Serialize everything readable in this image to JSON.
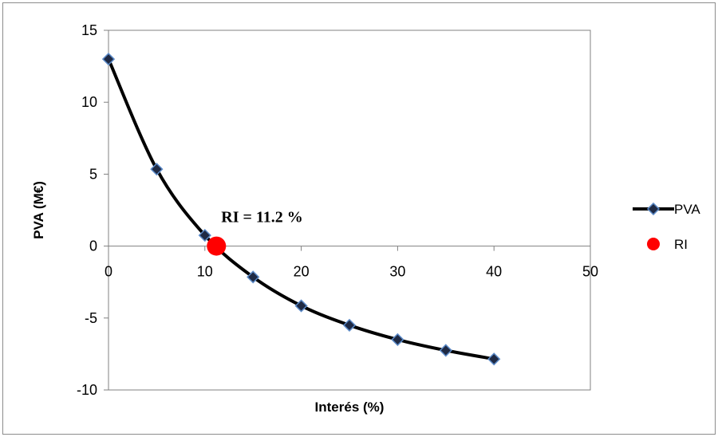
{
  "chart_data": {
    "type": "scatter",
    "title": "",
    "xlabel": "Interés (%)",
    "ylabel": "PVA (M€)",
    "xlim": [
      0,
      50
    ],
    "ylim": [
      -10,
      15
    ],
    "xticks": [
      "0",
      "10",
      "20",
      "30",
      "40",
      "50"
    ],
    "yticks": [
      "-10",
      "-5",
      "0",
      "5",
      "10",
      "15"
    ],
    "grid": false,
    "legend_position": "right",
    "series": [
      {
        "name": "PVA",
        "style": "smooth line with diamond markers",
        "color": "#000000",
        "marker_color": "#1f2a44",
        "marker_edge": "#5b8ac8",
        "x": [
          0,
          5,
          10,
          15,
          20,
          25,
          30,
          35,
          40
        ],
        "y": [
          13.0,
          5.35,
          0.75,
          -2.15,
          -4.15,
          -5.5,
          -6.5,
          -7.25,
          -7.85
        ]
      },
      {
        "name": "RI",
        "style": "large circle marker",
        "color": "#ff0000",
        "x": [
          11.2
        ],
        "y": [
          0
        ]
      }
    ],
    "annotations": [
      {
        "text": "RI = 11.2 %",
        "x": 11.2,
        "y": 0
      }
    ]
  }
}
